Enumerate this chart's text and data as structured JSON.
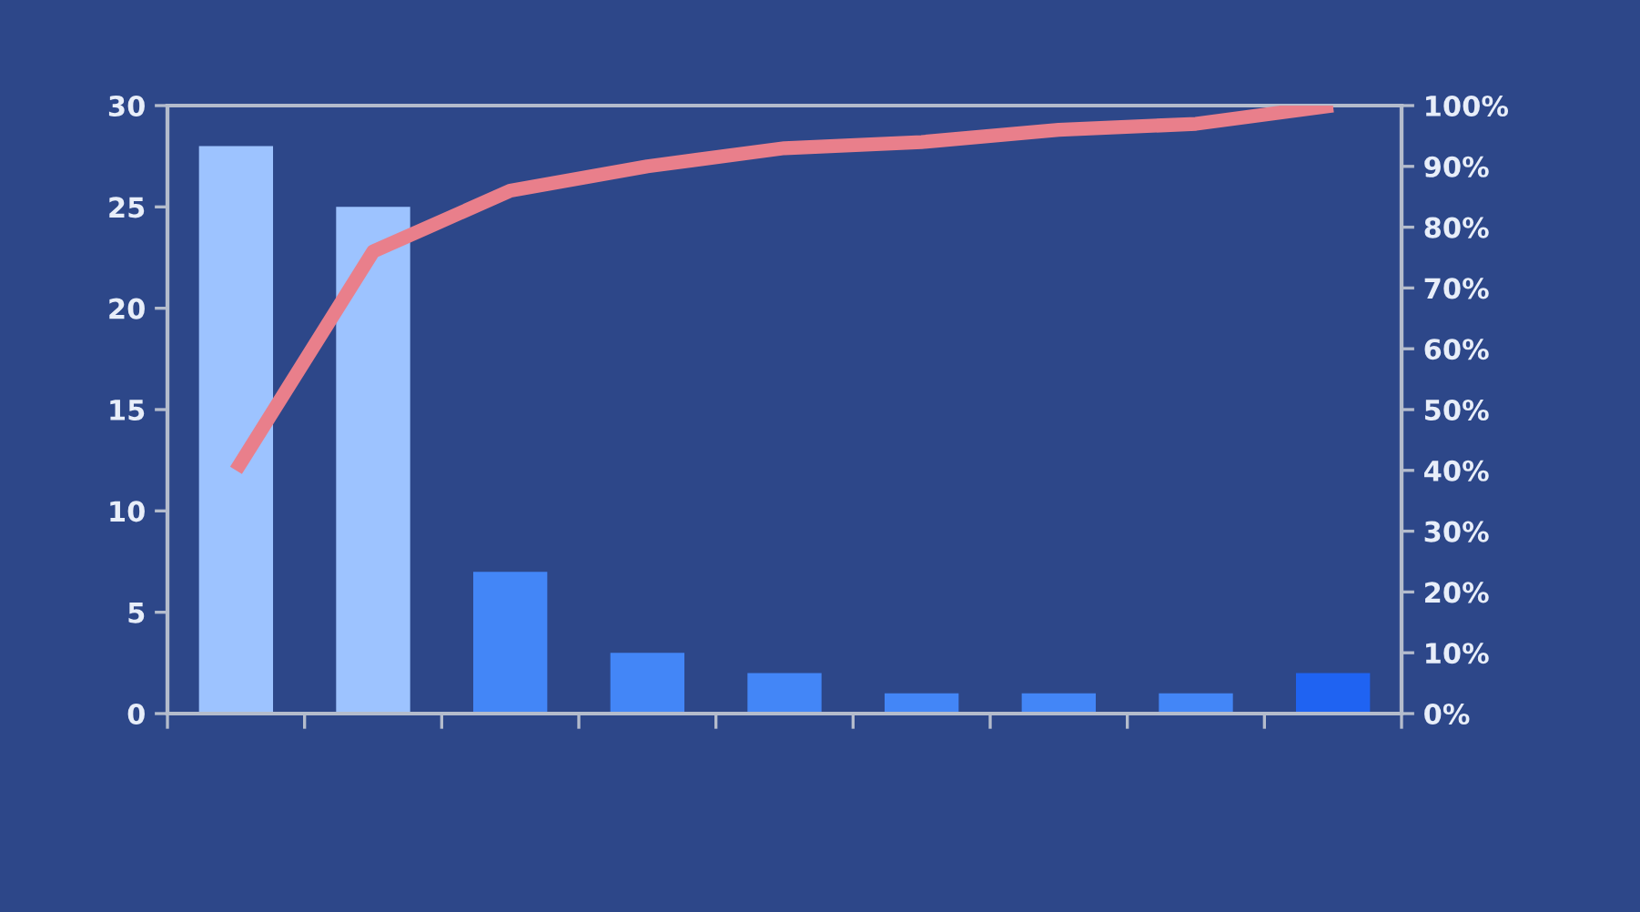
{
  "chart_data": {
    "type": "bar",
    "categories": [
      null,
      null,
      null,
      null,
      null,
      null,
      null,
      null,
      null
    ],
    "series": [
      {
        "colors": [
          "#9dc3ff",
          "#9dc3ff",
          "#4386f7",
          "#4386f7",
          "#4386f7",
          "#4386f7",
          "#4386f7",
          "#4386f7",
          "#1f63f2"
        ],
        "values": [
          28,
          25,
          7,
          3,
          2,
          1,
          1,
          1,
          2
        ]
      },
      {
        "type": "line",
        "axis": "y2",
        "color": "#e97f8b",
        "values": [
          40,
          76,
          86,
          90,
          93,
          94,
          96,
          97,
          100
        ]
      }
    ],
    "ylim": [
      0,
      30
    ],
    "yticks": [
      0,
      5,
      10,
      15,
      20,
      25,
      30
    ],
    "y2lim": [
      0,
      100
    ],
    "y2ticks": [
      {
        "value": 0,
        "label": "0%"
      },
      {
        "value": 10,
        "label": "10%"
      },
      {
        "value": 20,
        "label": "20%"
      },
      {
        "value": 30,
        "label": "30%"
      },
      {
        "value": 40,
        "label": "40%"
      },
      {
        "value": 50,
        "label": "50%"
      },
      {
        "value": 60,
        "label": "60%"
      },
      {
        "value": 70,
        "label": "70%"
      },
      {
        "value": 80,
        "label": "80%"
      },
      {
        "value": 90,
        "label": "90%"
      },
      {
        "value": 100,
        "label": "100%"
      }
    ],
    "grid": false,
    "marker": "none",
    "line_style": "solid"
  }
}
